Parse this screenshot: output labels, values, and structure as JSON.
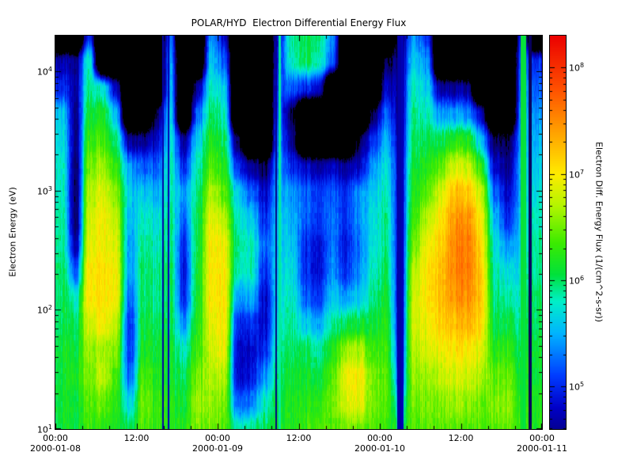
{
  "chart_data": {
    "type": "heatmap",
    "title": "POLAR/HYD  Electron Differential Energy Flux",
    "ylabel": "Electron Energy (eV)",
    "colorbar_label": "Electron Diff. Energy Flux (1/(cm^2-s-sr))",
    "x_range_hours": [
      0,
      72
    ],
    "x_start": "2000-01-08 00:00",
    "x_end": "2000-01-11 00:00",
    "y_range_log10_ev": [
      1.0,
      4.3
    ],
    "colorbar_range_log10": [
      4.6,
      8.3
    ],
    "x_ticks": [
      {
        "hour": 0,
        "time": "00:00",
        "date": "2000-01-08"
      },
      {
        "hour": 12,
        "time": "12:00"
      },
      {
        "hour": 24,
        "time": "00:00",
        "date": "2000-01-09"
      },
      {
        "hour": 36,
        "time": "12:00"
      },
      {
        "hour": 48,
        "time": "00:00",
        "date": "2000-01-10"
      },
      {
        "hour": 60,
        "time": "12:00"
      },
      {
        "hour": 72,
        "time": "00:00",
        "date": "2000-01-11"
      }
    ],
    "x_minor_tick_hours": 4,
    "y_ticks": [
      {
        "log10": 1,
        "base": "10",
        "exp": "1"
      },
      {
        "log10": 2,
        "base": "10",
        "exp": "2"
      },
      {
        "log10": 3,
        "base": "10",
        "exp": "3"
      },
      {
        "log10": 4,
        "base": "10",
        "exp": "4"
      }
    ],
    "colorbar_ticks": [
      {
        "log10": 5,
        "base": "10",
        "exp": "5"
      },
      {
        "log10": 6,
        "base": "10",
        "exp": "6"
      },
      {
        "log10": 7,
        "base": "10",
        "exp": "7"
      },
      {
        "log10": 8,
        "base": "10",
        "exp": "8"
      }
    ],
    "value_unit": "log10 flux, 1/(cm^2-s-sr)",
    "no_data_value": 3.0,
    "black_below": 4.35,
    "colormap": [
      {
        "v": 4.35,
        "color": "#0a0050"
      },
      {
        "v": 4.8,
        "color": "#0000c8"
      },
      {
        "v": 5.1,
        "color": "#003cff"
      },
      {
        "v": 5.5,
        "color": "#00b4ff"
      },
      {
        "v": 5.8,
        "color": "#00f0c8"
      },
      {
        "v": 6.05,
        "color": "#00e13c"
      },
      {
        "v": 6.35,
        "color": "#3ceb00"
      },
      {
        "v": 6.7,
        "color": "#b4f500"
      },
      {
        "v": 7.0,
        "color": "#ffeb00"
      },
      {
        "v": 7.4,
        "color": "#ffa000"
      },
      {
        "v": 7.8,
        "color": "#ff5000"
      },
      {
        "v": 8.3,
        "color": "#eb0000"
      }
    ],
    "hours_per_column": 2,
    "y_log10_energy_min": 1.0,
    "y_log10_energy_step": 0.22,
    "columns_note": "36 time columns (2 h each, 2000-01-08 00:00 to 2000-01-11 00:00); each column lists log10 flux at 16 energies from 10^1.0 eV (bottom) up to 10^4.3 eV (top); 3.0 = no data (black)",
    "columns": [
      [
        6.1,
        6.1,
        6.1,
        6.1,
        6.0,
        6.0,
        6.0,
        5.9,
        5.9,
        5.8,
        5.8,
        5.7,
        5.6,
        5.0,
        4.7,
        3.0
      ],
      [
        6.1,
        6.1,
        6.2,
        6.1,
        6.0,
        5.8,
        5.2,
        4.7,
        4.5,
        4.5,
        4.5,
        4.6,
        4.6,
        4.7,
        4.6,
        3.0
      ],
      [
        6.3,
        6.4,
        6.5,
        6.6,
        6.8,
        7.0,
        7.0,
        6.9,
        6.8,
        6.7,
        6.5,
        6.3,
        6.1,
        5.9,
        5.8,
        5.0
      ],
      [
        6.3,
        6.5,
        6.8,
        6.7,
        7.0,
        7.1,
        7.1,
        7.0,
        7.0,
        6.9,
        6.7,
        6.4,
        6.2,
        5.8,
        3.0,
        3.0
      ],
      [
        6.2,
        6.3,
        6.4,
        6.6,
        6.8,
        7.0,
        7.0,
        6.9,
        6.8,
        6.6,
        6.3,
        6.0,
        5.6,
        4.8,
        3.0,
        3.0
      ],
      [
        6.0,
        5.6,
        5.2,
        5.0,
        5.0,
        5.2,
        5.4,
        5.4,
        5.5,
        5.6,
        5.4,
        4.6,
        3.0,
        3.0,
        3.0,
        3.0
      ],
      [
        6.4,
        6.5,
        6.4,
        6.2,
        6.1,
        6.0,
        6.0,
        5.9,
        5.8,
        5.6,
        5.2,
        4.6,
        3.0,
        3.0,
        3.0,
        3.0
      ],
      [
        6.3,
        6.3,
        6.2,
        6.1,
        6.0,
        5.9,
        5.9,
        5.8,
        5.7,
        5.5,
        5.2,
        4.8,
        4.4,
        3.0,
        3.0,
        3.0
      ],
      [
        6.2,
        6.2,
        6.1,
        6.1,
        6.0,
        6.0,
        6.0,
        5.9,
        5.9,
        5.8,
        5.8,
        5.7,
        5.6,
        5.5,
        5.4,
        5.2
      ],
      [
        6.2,
        6.1,
        6.0,
        5.8,
        5.4,
        5.0,
        4.9,
        5.0,
        5.2,
        5.4,
        5.0,
        4.6,
        3.0,
        3.0,
        3.0,
        3.0
      ],
      [
        6.5,
        6.6,
        6.5,
        6.3,
        6.2,
        6.1,
        6.1,
        6.0,
        6.0,
        5.9,
        5.8,
        5.6,
        5.2,
        4.6,
        3.0,
        3.0
      ],
      [
        6.5,
        6.6,
        6.7,
        6.8,
        6.9,
        7.0,
        7.0,
        7.0,
        6.9,
        6.7,
        6.4,
        6.2,
        6.0,
        5.8,
        5.6,
        5.4
      ],
      [
        6.4,
        6.5,
        6.7,
        6.9,
        7.0,
        7.0,
        7.0,
        6.9,
        6.7,
        6.4,
        6.2,
        6.0,
        5.8,
        5.6,
        5.2,
        4.8
      ],
      [
        5.8,
        5.2,
        4.8,
        4.8,
        5.0,
        5.4,
        5.8,
        5.9,
        5.8,
        5.6,
        5.0,
        4.4,
        3.0,
        3.0,
        3.0,
        3.0
      ],
      [
        5.9,
        5.3,
        4.9,
        4.8,
        5.0,
        5.5,
        5.8,
        5.8,
        5.6,
        5.2,
        4.6,
        3.0,
        3.0,
        3.0,
        3.0,
        3.0
      ],
      [
        6.0,
        5.8,
        5.4,
        5.0,
        4.8,
        4.8,
        5.0,
        5.2,
        5.0,
        4.8,
        4.4,
        3.0,
        3.0,
        3.0,
        3.0,
        3.0
      ],
      [
        6.2,
        6.1,
        6.0,
        5.9,
        5.8,
        5.7,
        5.7,
        5.6,
        5.6,
        5.5,
        5.4,
        5.3,
        5.2,
        5.1,
        5.0,
        4.9
      ],
      [
        6.2,
        6.2,
        6.1,
        6.0,
        5.9,
        5.8,
        5.7,
        5.6,
        5.5,
        5.4,
        5.0,
        4.6,
        4.4,
        5.2,
        5.8,
        5.9
      ],
      [
        6.3,
        6.2,
        6.1,
        6.0,
        5.6,
        5.2,
        5.0,
        5.0,
        5.2,
        5.2,
        4.8,
        3.0,
        3.0,
        5.0,
        6.0,
        6.0
      ],
      [
        6.3,
        6.2,
        6.0,
        5.8,
        5.4,
        5.0,
        4.8,
        4.8,
        5.0,
        5.0,
        4.6,
        3.0,
        3.0,
        4.8,
        5.8,
        5.9
      ],
      [
        6.4,
        6.5,
        6.4,
        6.2,
        5.9,
        5.6,
        5.4,
        5.3,
        5.3,
        5.2,
        4.8,
        3.0,
        3.0,
        3.0,
        5.2,
        5.4
      ],
      [
        6.5,
        6.8,
        6.9,
        6.6,
        6.0,
        5.4,
        5.0,
        4.9,
        5.0,
        5.0,
        4.6,
        3.0,
        3.0,
        3.0,
        3.0,
        3.0
      ],
      [
        6.5,
        6.9,
        7.0,
        6.7,
        6.1,
        5.6,
        5.4,
        5.3,
        5.4,
        5.4,
        4.8,
        4.4,
        3.0,
        3.0,
        3.0,
        3.0
      ],
      [
        6.4,
        6.5,
        6.5,
        6.3,
        6.1,
        5.9,
        5.8,
        5.7,
        5.7,
        5.6,
        5.4,
        5.0,
        4.4,
        3.0,
        3.0,
        3.0
      ],
      [
        6.3,
        6.4,
        6.4,
        6.3,
        6.2,
        6.1,
        6.0,
        5.9,
        5.9,
        5.8,
        5.7,
        5.5,
        5.2,
        4.8,
        4.4,
        3.0
      ],
      [
        6.0,
        5.6,
        5.2,
        5.0,
        4.9,
        4.8,
        4.8,
        4.8,
        4.8,
        4.8,
        4.8,
        4.7,
        4.6,
        4.6,
        4.5,
        4.4
      ],
      [
        6.4,
        6.5,
        6.6,
        6.7,
        6.8,
        6.8,
        6.7,
        6.5,
        6.3,
        6.2,
        6.1,
        6.0,
        5.9,
        5.8,
        5.6,
        5.4
      ],
      [
        6.4,
        6.5,
        6.6,
        6.8,
        6.9,
        7.0,
        7.0,
        6.9,
        6.7,
        6.4,
        6.2,
        6.0,
        5.8,
        5.6,
        5.4,
        5.0
      ],
      [
        6.4,
        6.5,
        6.7,
        6.9,
        7.1,
        7.2,
        7.2,
        7.1,
        7.0,
        6.8,
        6.4,
        6.0,
        5.4,
        4.6,
        3.0,
        3.0
      ],
      [
        6.4,
        6.6,
        6.8,
        7.0,
        7.2,
        7.4,
        7.5,
        7.5,
        7.4,
        7.2,
        6.8,
        6.2,
        5.4,
        4.6,
        3.0,
        3.0
      ],
      [
        6.4,
        6.6,
        6.8,
        7.0,
        7.3,
        7.5,
        7.6,
        7.6,
        7.5,
        7.2,
        6.8,
        6.2,
        5.4,
        4.6,
        3.0,
        3.0
      ],
      [
        6.4,
        6.5,
        6.7,
        6.9,
        7.1,
        7.2,
        7.2,
        7.1,
        7.0,
        6.8,
        6.3,
        5.6,
        4.8,
        3.0,
        3.0,
        3.0
      ],
      [
        6.4,
        6.5,
        6.4,
        6.2,
        6.0,
        5.9,
        5.8,
        5.7,
        5.5,
        5.2,
        4.8,
        4.4,
        3.0,
        3.0,
        3.0,
        3.0
      ],
      [
        6.5,
        6.6,
        6.5,
        6.3,
        6.1,
        5.9,
        5.7,
        5.4,
        5.0,
        4.8,
        4.6,
        4.4,
        3.0,
        3.0,
        3.0,
        3.0
      ],
      [
        6.3,
        6.2,
        6.1,
        6.0,
        5.9,
        5.8,
        5.7,
        5.6,
        5.6,
        5.5,
        5.5,
        5.4,
        5.4,
        5.3,
        5.2,
        5.0
      ],
      [
        6.2,
        6.2,
        6.1,
        6.1,
        6.0,
        6.0,
        5.9,
        5.9,
        5.8,
        5.7,
        5.6,
        5.5,
        5.4,
        5.2,
        5.0,
        3.0
      ]
    ],
    "gap_stripes": [
      {
        "hour": 15.9,
        "width": 2,
        "value": 4.7
      },
      {
        "hour": 16.7,
        "width": 2,
        "value": 4.7
      },
      {
        "hour": 33.2,
        "width": 3,
        "value": 5.9
      },
      {
        "hour": 32.7,
        "width": 2,
        "value": 4.6
      },
      {
        "hour": 51.0,
        "width": 8,
        "value": 4.7
      },
      {
        "hour": 69.2,
        "width": 7,
        "value": 6.05
      },
      {
        "hour": 70.2,
        "width": 4,
        "value": 4.4
      }
    ]
  }
}
